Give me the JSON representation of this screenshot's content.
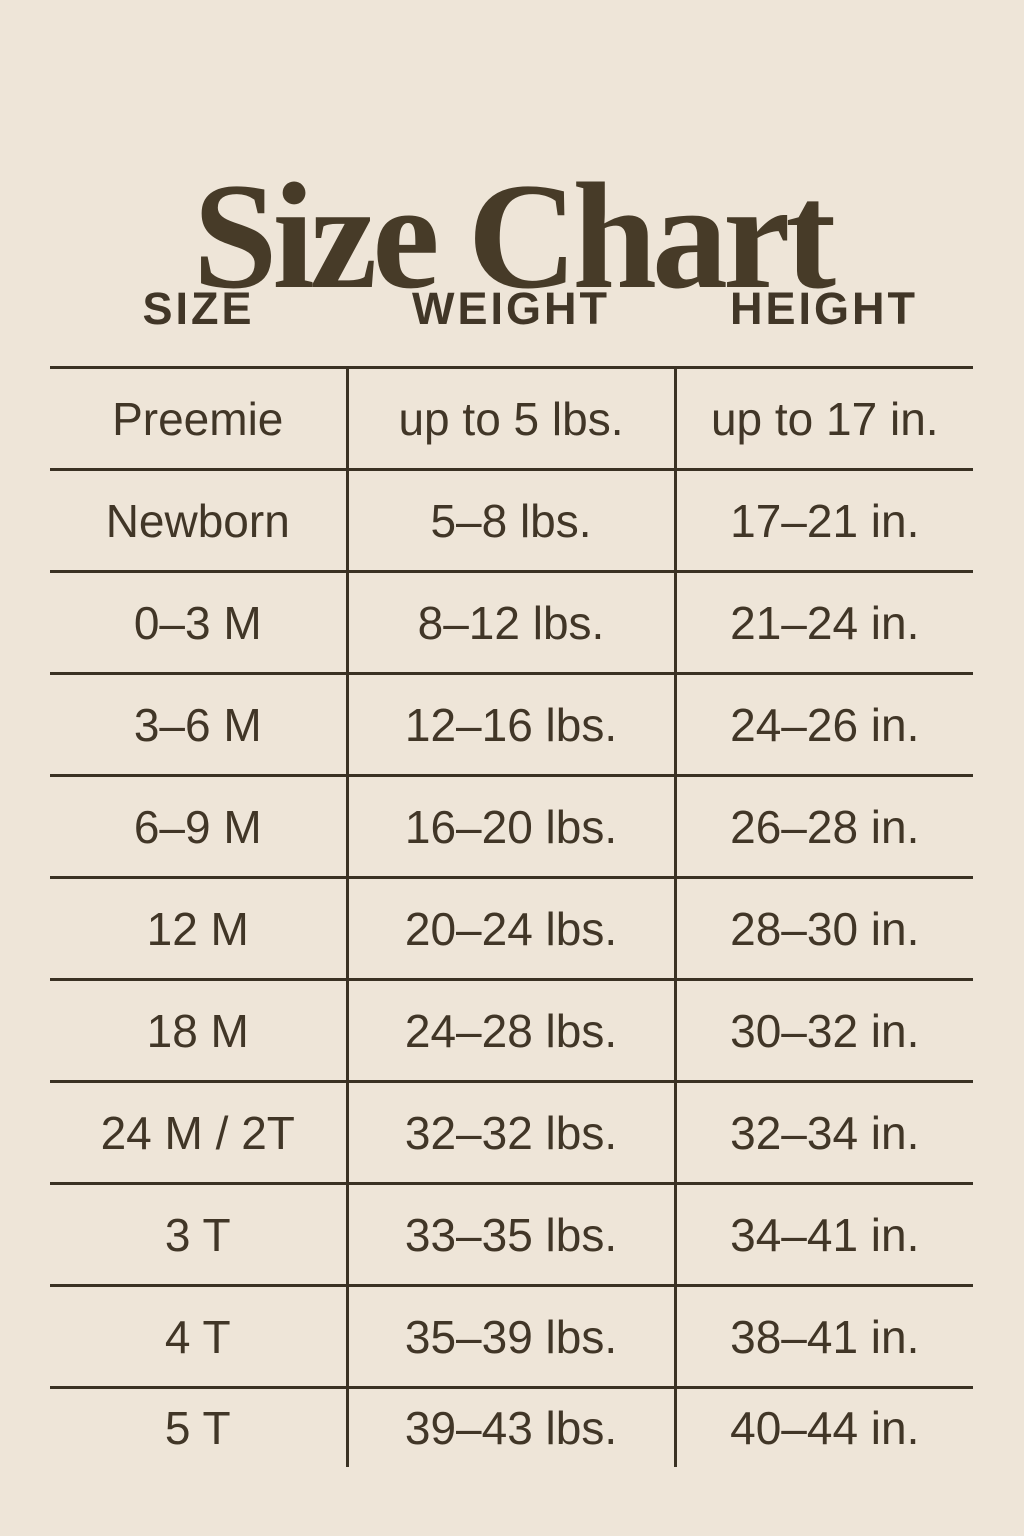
{
  "title": "Size Chart",
  "colors": {
    "background": "#eee5d8",
    "text": "#413627",
    "line": "#3a3123",
    "title_text": "#473b28"
  },
  "chart_data": {
    "type": "table",
    "title": "Size Chart",
    "columns": [
      "SIZE",
      "WEIGHT",
      "HEIGHT"
    ],
    "rows": [
      [
        "Preemie",
        "up to 5 lbs.",
        "up to 17 in."
      ],
      [
        "Newborn",
        "5–8 lbs.",
        "17–21 in."
      ],
      [
        "0–3 M",
        "8–12 lbs.",
        "21–24 in."
      ],
      [
        "3–6 M",
        "12–16 lbs.",
        "24–26 in."
      ],
      [
        "6–9 M",
        "16–20 lbs.",
        "26–28 in."
      ],
      [
        "12 M",
        "20–24 lbs.",
        "28–30 in."
      ],
      [
        "18 M",
        "24–28 lbs.",
        "30–32 in."
      ],
      [
        "24 M / 2T",
        "32–32 lbs.",
        "32–34 in."
      ],
      [
        "3 T",
        "33–35 lbs.",
        "34–41 in."
      ],
      [
        "4 T",
        "35–39 lbs.",
        "38–41 in."
      ],
      [
        "5 T",
        "39–43 lbs.",
        "40–44 in."
      ]
    ],
    "layout": {
      "grid": "horizontal row dividers and inner vertical column dividers, no outer frame",
      "header_position": "top"
    }
  }
}
